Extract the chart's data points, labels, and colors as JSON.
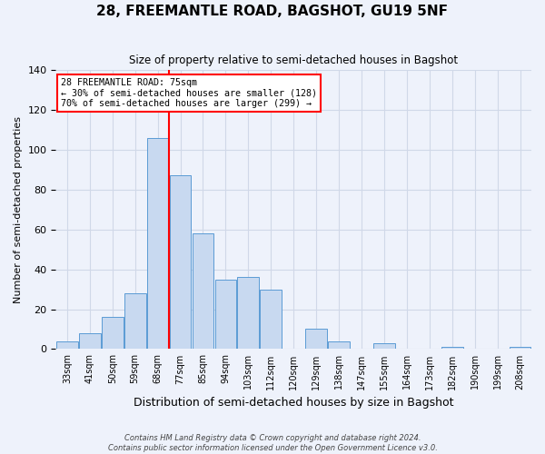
{
  "title": "28, FREEMANTLE ROAD, BAGSHOT, GU19 5NF",
  "subtitle": "Size of property relative to semi-detached houses in Bagshot",
  "xlabel": "Distribution of semi-detached houses by size in Bagshot",
  "ylabel": "Number of semi-detached properties",
  "bin_labels": [
    "33sqm",
    "41sqm",
    "50sqm",
    "59sqm",
    "68sqm",
    "77sqm",
    "85sqm",
    "94sqm",
    "103sqm",
    "112sqm",
    "120sqm",
    "129sqm",
    "138sqm",
    "147sqm",
    "155sqm",
    "164sqm",
    "173sqm",
    "182sqm",
    "190sqm",
    "199sqm",
    "208sqm"
  ],
  "bar_heights": [
    4,
    8,
    16,
    28,
    106,
    87,
    58,
    35,
    36,
    30,
    0,
    10,
    4,
    0,
    3,
    0,
    0,
    1,
    0,
    0,
    1
  ],
  "bar_color": "#c8d9f0",
  "bar_edge_color": "#5b9bd5",
  "vline_bin_index": 5,
  "vline_color": "red",
  "annotation_title": "28 FREEMANTLE ROAD: 75sqm",
  "annotation_line1": "← 30% of semi-detached houses are smaller (128)",
  "annotation_line2": "70% of semi-detached houses are larger (299) →",
  "annotation_box_color": "white",
  "annotation_box_edge": "red",
  "ylim": [
    0,
    140
  ],
  "yticks": [
    0,
    20,
    40,
    60,
    80,
    100,
    120,
    140
  ],
  "footer1": "Contains HM Land Registry data © Crown copyright and database right 2024.",
  "footer2": "Contains public sector information licensed under the Open Government Licence v3.0.",
  "background_color": "#eef2fb",
  "grid_color": "#d0d8e8"
}
